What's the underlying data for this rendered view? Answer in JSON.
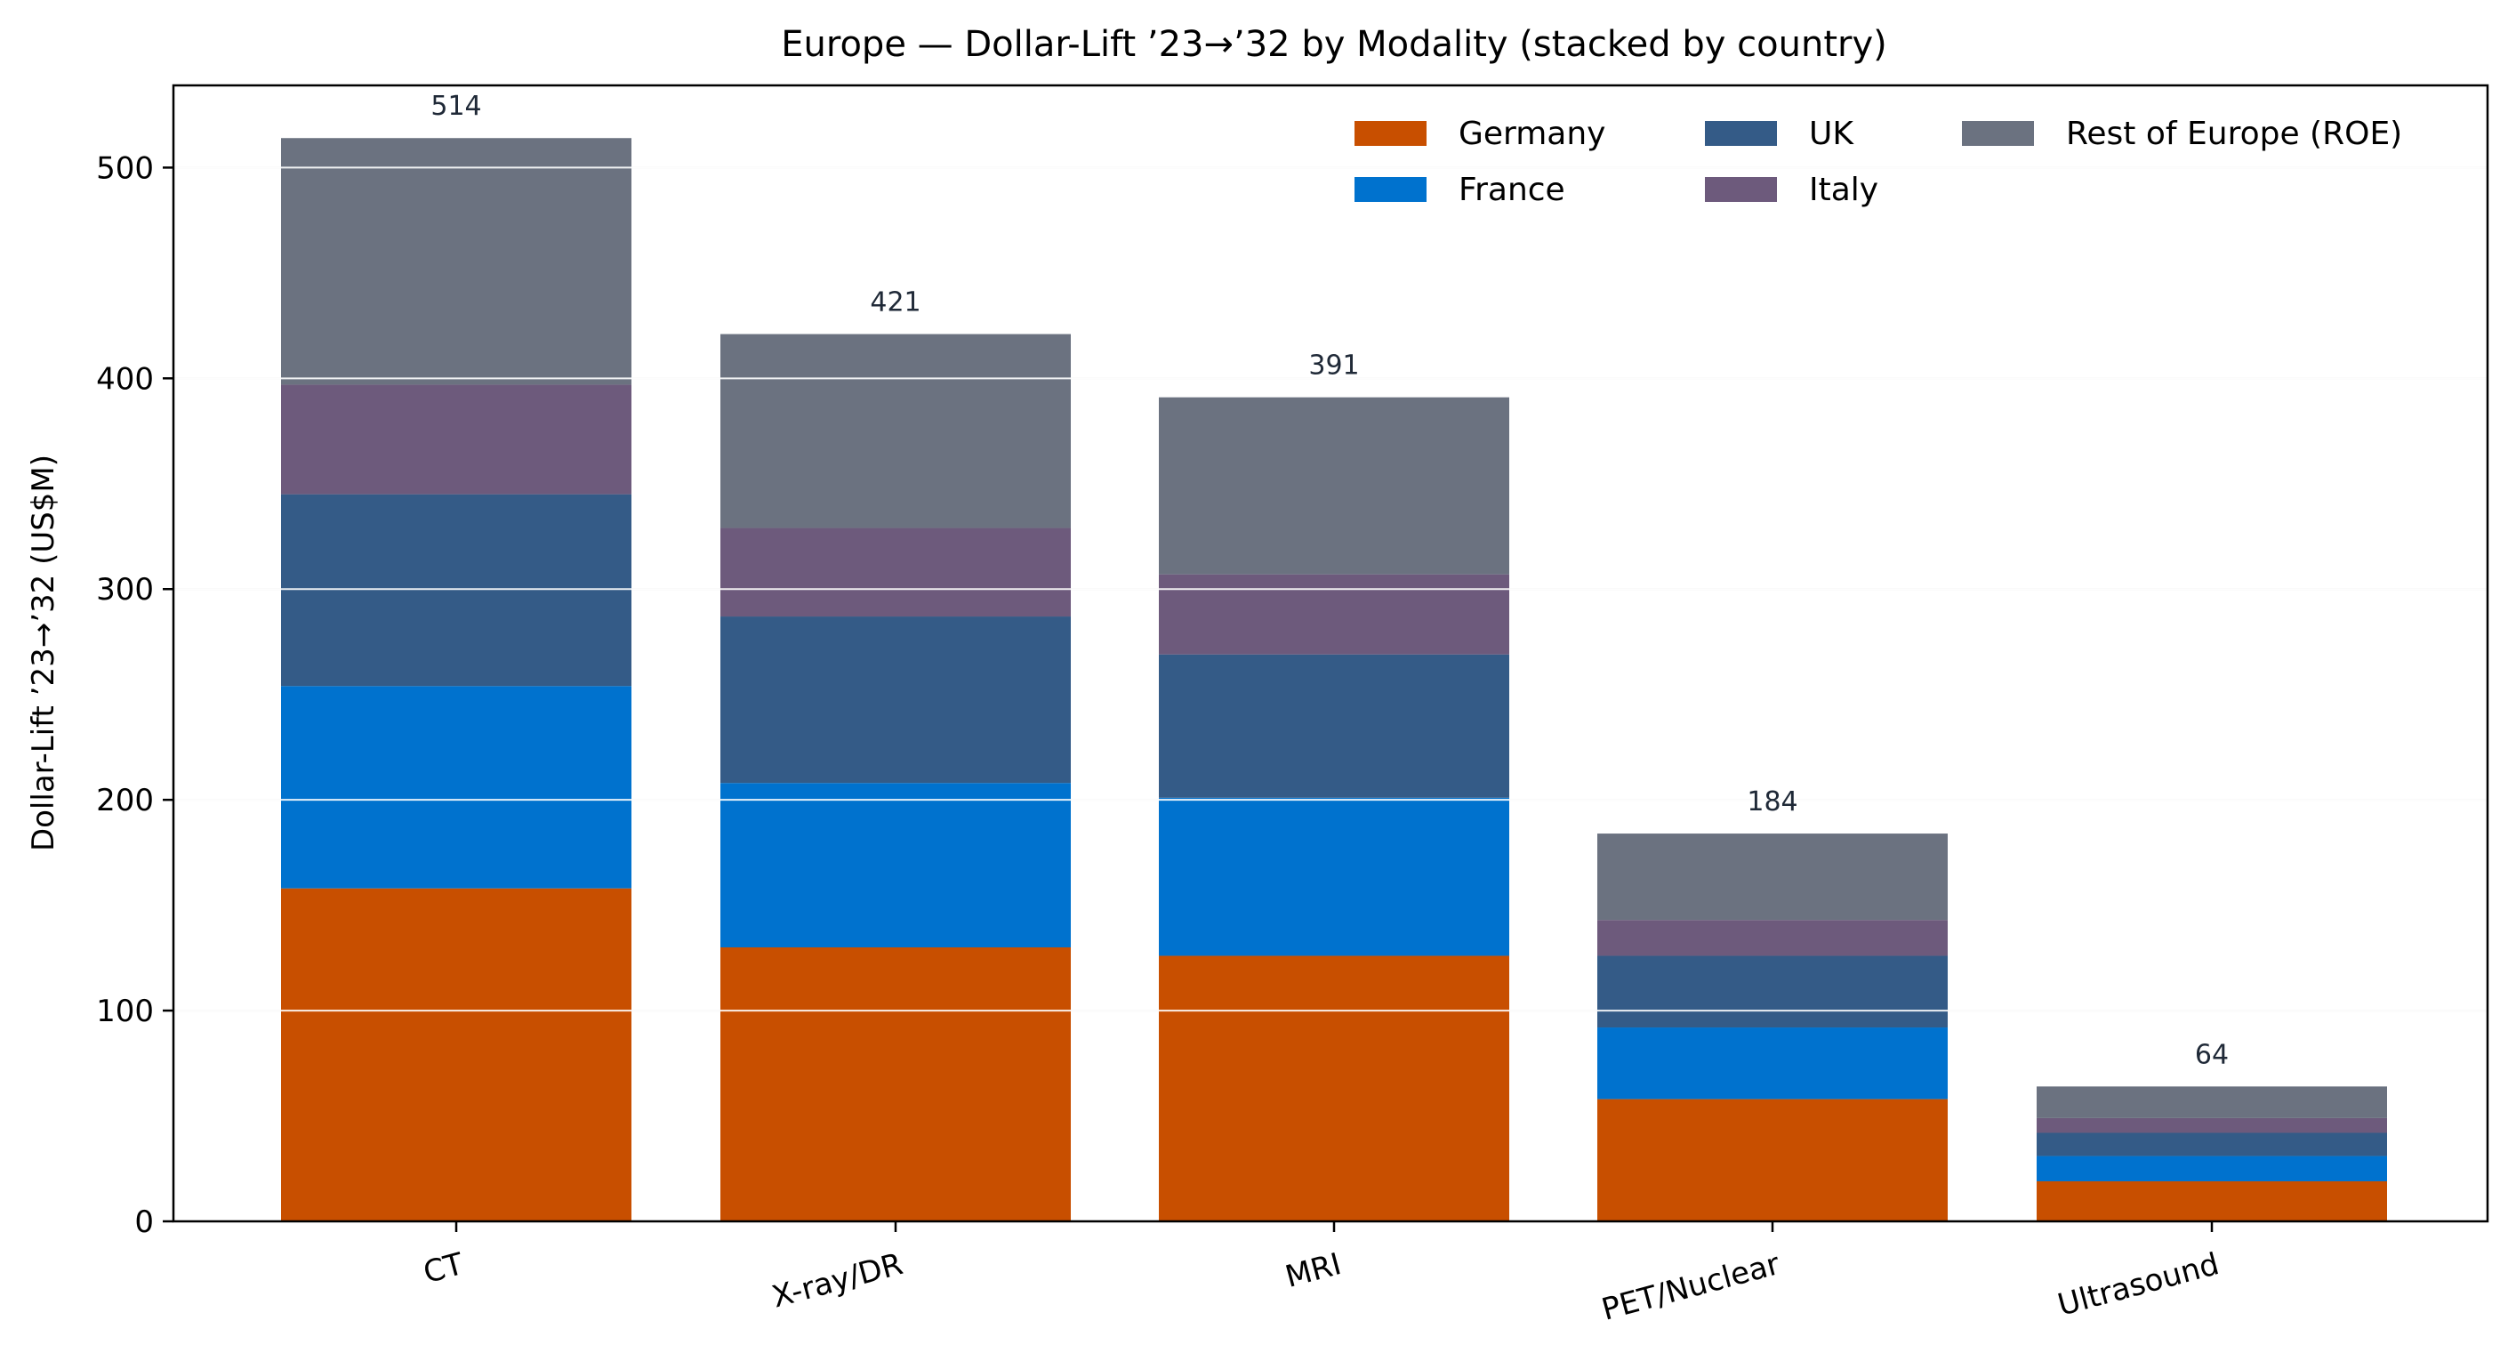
{
  "chart_data": {
    "type": "bar",
    "stacked": true,
    "title": "Europe — Dollar-Lift ’23→’32 by Modality (stacked by country)",
    "xlabel": "",
    "ylabel": "Dollar-Lift ’23→’32 (US$M)",
    "ylim": [
      0,
      539
    ],
    "yticks": [
      0,
      100,
      200,
      300,
      400,
      500
    ],
    "grid": "y",
    "legend_position": "top-right",
    "categories": [
      "CT",
      "X-ray/DR",
      "MRI",
      "PET/Nuclear",
      "Ultrasound"
    ],
    "series": [
      {
        "name": "Germany",
        "color": "#c84f00",
        "values": [
          158,
          130,
          126,
          58,
          19
        ]
      },
      {
        "name": "France",
        "color": "#0072ce",
        "values": [
          96,
          78,
          75,
          34,
          12
        ]
      },
      {
        "name": "UK",
        "color": "#345b87",
        "values": [
          91,
          79,
          68,
          34,
          11
        ]
      },
      {
        "name": "Italy",
        "color": "#6d5a7c",
        "values": [
          52,
          42,
          38,
          17,
          7
        ]
      },
      {
        "name": "Rest of Europe (ROE)",
        "color": "#6b7280",
        "values": [
          117,
          92,
          84,
          41,
          15
        ]
      }
    ],
    "totals": [
      "514",
      "421",
      "391",
      "184",
      "64"
    ]
  }
}
